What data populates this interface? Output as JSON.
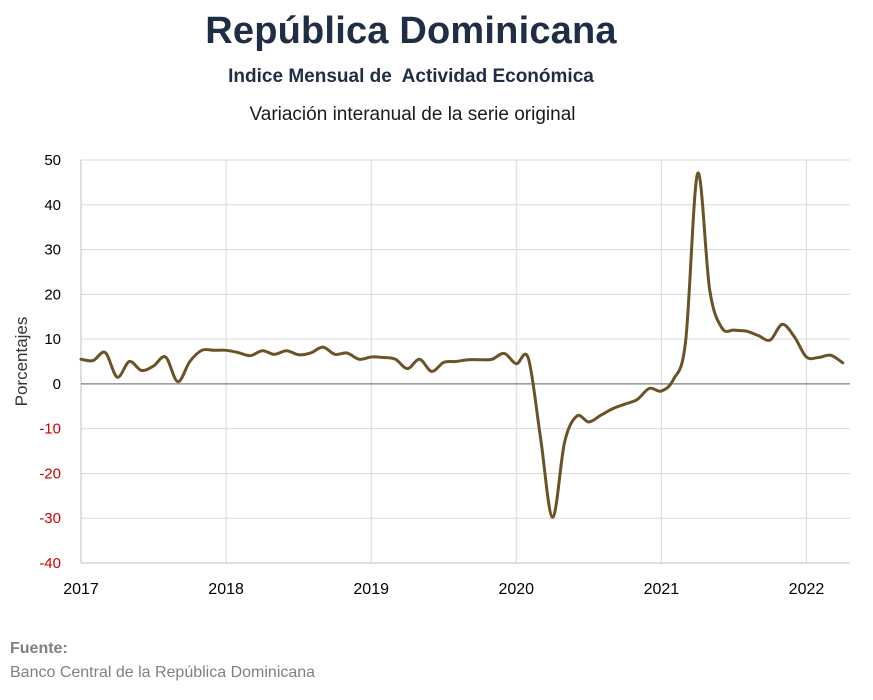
{
  "chart_data": {
    "type": "line",
    "title": "República Dominicana",
    "subtitle": "Indice Mensual de  Actividad Económica",
    "subtitle2": "Variación interanual de la serie original",
    "ylabel": "Porcentajes",
    "xlabel": "",
    "ylim": [
      -40,
      50
    ],
    "xlim": [
      2017,
      2022.3
    ],
    "yticks": [
      50,
      40,
      30,
      20,
      10,
      0,
      -10,
      -20,
      -30,
      -40
    ],
    "xticks": [
      "2017",
      "2018",
      "2019",
      "2020",
      "2021",
      "2022"
    ],
    "grid": true,
    "colors": {
      "line": "#6b5327",
      "negative_tick": "#cc0000",
      "positive_tick": "#000000",
      "grid": "#d9d9d9",
      "zero_line": "#7f7f7f"
    },
    "series": [
      {
        "x": [
          2017.0,
          2017.083,
          2017.167,
          2017.25,
          2017.333,
          2017.417,
          2017.5,
          2017.583,
          2017.667,
          2017.75,
          2017.833,
          2017.917,
          2018.0,
          2018.083,
          2018.167,
          2018.25,
          2018.333,
          2018.417,
          2018.5,
          2018.583,
          2018.667,
          2018.75,
          2018.833,
          2018.917,
          2019.0,
          2019.083,
          2019.167,
          2019.25,
          2019.333,
          2019.417,
          2019.5,
          2019.583,
          2019.667,
          2019.75,
          2019.833,
          2019.917,
          2020.0,
          2020.083,
          2020.167,
          2020.25,
          2020.333,
          2020.417,
          2020.5,
          2020.583,
          2020.667,
          2020.75,
          2020.833,
          2020.917,
          2021.0,
          2021.083,
          2021.167,
          2021.25,
          2021.333,
          2021.417,
          2021.5,
          2021.583,
          2021.667,
          2021.75,
          2021.833,
          2021.917,
          2022.0,
          2022.083,
          2022.167,
          2022.25
        ],
        "values": [
          5.5,
          5.2,
          7.0,
          1.5,
          5.0,
          3.0,
          4.0,
          6.0,
          0.5,
          5.0,
          7.5,
          7.5,
          7.5,
          7.0,
          6.3,
          7.4,
          6.6,
          7.4,
          6.5,
          6.9,
          8.2,
          6.6,
          6.9,
          5.5,
          6.0,
          5.9,
          5.5,
          3.4,
          5.5,
          2.8,
          4.8,
          5.0,
          5.4,
          5.4,
          5.5,
          6.8,
          4.5,
          5.7,
          -12.0,
          -29.8,
          -13.0,
          -7.2,
          -8.5,
          -7.0,
          -5.5,
          -4.5,
          -3.5,
          -1.0,
          -1.6,
          1.0,
          9.5,
          47.0,
          21.0,
          12.5,
          12.0,
          11.8,
          10.8,
          9.8,
          13.3,
          10.5,
          6.0,
          5.9,
          6.4,
          4.7
        ]
      }
    ]
  },
  "source": {
    "label": "Fuente:",
    "text": "Banco Central de la República Dominicana"
  }
}
